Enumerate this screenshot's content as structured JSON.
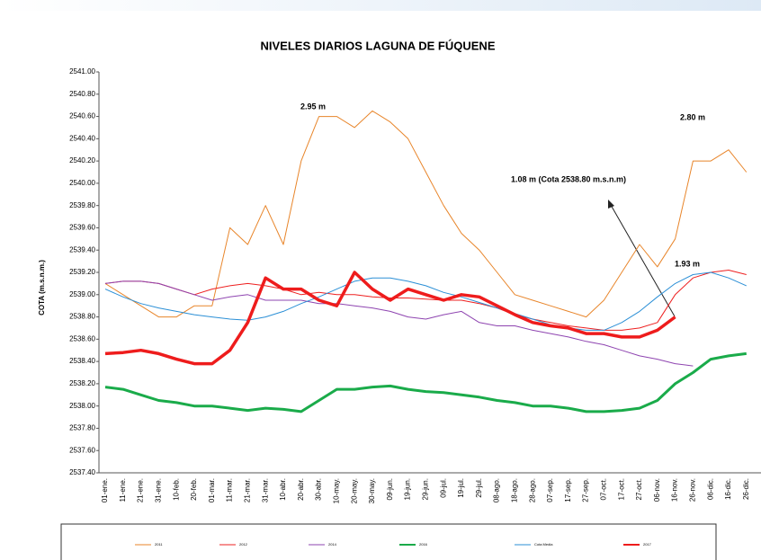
{
  "chart_data": {
    "type": "line",
    "title": "NIVELES DIARIOS LAGUNA DE FÚQUENE",
    "y_label": "COTA (m.s.n.m.)",
    "categories": [
      "01-ene.",
      "11-ene.",
      "21-ene.",
      "31-ene.",
      "10-feb.",
      "20-feb.",
      "01-mar.",
      "11-mar.",
      "21-mar.",
      "31-mar.",
      "10-abr.",
      "20-abr.",
      "30-abr.",
      "10-may.",
      "20-may.",
      "30-may.",
      "09-jun.",
      "19-jun.",
      "29-jun.",
      "09-jul.",
      "19-jul.",
      "29-jul.",
      "08-ago.",
      "18-ago.",
      "28-ago.",
      "07-sep.",
      "17-sep.",
      "27-sep.",
      "07-oct.",
      "17-oct.",
      "27-oct.",
      "06-nov.",
      "16-nov.",
      "26-nov.",
      "06-dic.",
      "16-dic.",
      "26-dic."
    ],
    "ylim": [
      2537.4,
      2541.0
    ],
    "yticks": [
      {
        "value": 2537.4,
        "label": "2537.40"
      },
      {
        "value": 2537.6,
        "label": "2537.60"
      },
      {
        "value": 2537.8,
        "label": "2537.80"
      },
      {
        "value": 2538.0,
        "label": "2538.00"
      },
      {
        "value": 2538.2,
        "label": "2538.20"
      },
      {
        "value": 2538.4,
        "label": "2538.40"
      },
      {
        "value": 2538.6,
        "label": "2538.60"
      },
      {
        "value": 2538.8,
        "label": "2538.80"
      },
      {
        "value": 2539.0,
        "label": "2539.00"
      },
      {
        "value": 2539.2,
        "label": "2539.20"
      },
      {
        "value": 2539.4,
        "label": "2539.40"
      },
      {
        "value": 2539.6,
        "label": "2539.60"
      },
      {
        "value": 2539.8,
        "label": "2539.80"
      },
      {
        "value": 2540.0,
        "label": "2540.00"
      },
      {
        "value": 2540.2,
        "label": "2540.20"
      },
      {
        "value": 2540.4,
        "label": "2540.40"
      },
      {
        "value": 2540.6,
        "label": "2540.60"
      },
      {
        "value": 2540.8,
        "label": "2540.80"
      },
      {
        "value": 2541.0,
        "label": "2541.00"
      }
    ],
    "grid": false,
    "series": [
      {
        "name": "2011",
        "color": "#e8852a",
        "line_width": 1,
        "values": [
          2539.1,
          2539.0,
          2538.9,
          2538.8,
          2538.8,
          2538.9,
          2538.9,
          2539.6,
          2539.45,
          2539.8,
          2539.45,
          2540.2,
          2540.6,
          2540.6,
          2540.5,
          2540.65,
          2540.55,
          2540.4,
          2540.1,
          2539.8,
          2539.55,
          2539.4,
          2539.2,
          2539.0,
          2538.95,
          2538.9,
          2538.85,
          2538.8,
          2538.95,
          2539.2,
          2539.45,
          2539.25,
          2539.5,
          2540.2,
          2540.2,
          2540.3,
          2540.1
        ]
      },
      {
        "name": "2012",
        "color": "#ee2020",
        "line_width": 1,
        "values": [
          2539.1,
          2539.12,
          2539.12,
          2539.1,
          2539.05,
          2539.0,
          2539.05,
          2539.08,
          2539.1,
          2539.08,
          2539.05,
          2539.0,
          2539.02,
          2539.0,
          2539.0,
          2538.98,
          2538.97,
          2538.97,
          2538.96,
          2538.95,
          2538.95,
          2538.92,
          2538.88,
          2538.82,
          2538.78,
          2538.75,
          2538.72,
          2538.7,
          2538.68,
          2538.68,
          2538.7,
          2538.75,
          2539.0,
          2539.15,
          2539.2,
          2539.22,
          2539.18
        ]
      },
      {
        "name": "2014",
        "color": "#8e44b0",
        "line_width": 1,
        "values": [
          2539.1,
          2539.12,
          2539.12,
          2539.1,
          2539.05,
          2539.0,
          2538.95,
          2538.98,
          2539.0,
          2538.95,
          2538.95,
          2538.95,
          2538.92,
          2538.92,
          2538.9,
          2538.88,
          2538.85,
          2538.8,
          2538.78,
          2538.82,
          2538.85,
          2538.75,
          2538.72,
          2538.72,
          2538.68,
          2538.65,
          2538.62,
          2538.58,
          2538.55,
          2538.5,
          2538.45,
          2538.42,
          2538.38,
          2538.36,
          null,
          null,
          null
        ]
      },
      {
        "name": "2016",
        "color": "#1aab4a",
        "line_width": 3,
        "values": [
          2538.17,
          2538.15,
          2538.1,
          2538.05,
          2538.03,
          2538.0,
          2538.0,
          2537.98,
          2537.96,
          2537.98,
          2537.97,
          2537.95,
          2538.05,
          2538.15,
          2538.15,
          2538.17,
          2538.18,
          2538.15,
          2538.13,
          2538.12,
          2538.1,
          2538.08,
          2538.05,
          2538.03,
          2538.0,
          2538.0,
          2537.98,
          2537.95,
          2537.95,
          2537.96,
          2537.98,
          2538.05,
          2538.2,
          2538.3,
          2538.42,
          2538.45,
          2538.47
        ]
      },
      {
        "name": "Cota Media",
        "color": "#2b8fd6",
        "line_width": 1,
        "values": [
          2539.05,
          2538.98,
          2538.92,
          2538.88,
          2538.85,
          2538.82,
          2538.8,
          2538.78,
          2538.77,
          2538.8,
          2538.85,
          2538.92,
          2538.98,
          2539.05,
          2539.12,
          2539.15,
          2539.15,
          2539.12,
          2539.08,
          2539.02,
          2538.98,
          2538.93,
          2538.88,
          2538.83,
          2538.78,
          2538.73,
          2538.7,
          2538.68,
          2538.68,
          2538.75,
          2538.85,
          2538.98,
          2539.1,
          2539.18,
          2539.2,
          2539.15,
          2539.08
        ]
      },
      {
        "name": "2017",
        "color": "#ee1c1c",
        "line_width": 3.5,
        "values": [
          2538.47,
          2538.48,
          2538.5,
          2538.47,
          2538.42,
          2538.38,
          2538.38,
          2538.5,
          2538.75,
          2539.15,
          2539.05,
          2539.05,
          2538.95,
          2538.9,
          2539.2,
          2539.05,
          2538.95,
          2539.05,
          2539.0,
          2538.95,
          2539.0,
          2538.98,
          2538.9,
          2538.82,
          2538.75,
          2538.72,
          2538.7,
          2538.65,
          2538.65,
          2538.62,
          2538.62,
          2538.68,
          2538.8,
          null,
          null,
          null,
          null
        ]
      }
    ],
    "annotations": [
      "2.95 m",
      "1.08 m (Cota 2538.80 m.s.n.m)",
      "2.80 m",
      "1.93 m"
    ]
  }
}
